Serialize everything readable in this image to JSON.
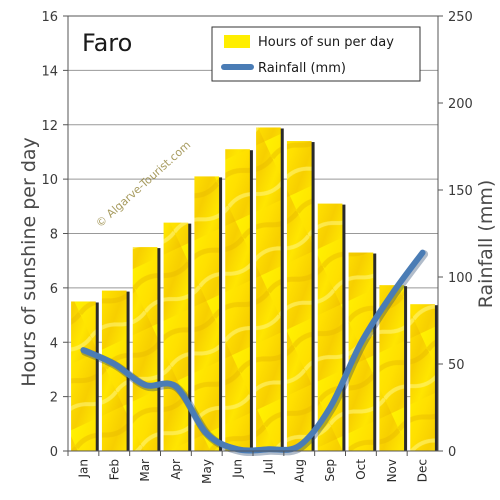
{
  "chart_data": {
    "type": "bar",
    "title": "Faro",
    "watermark": "© Algarve-Tourist.com",
    "categories": [
      "Jan",
      "Feb",
      "Mar",
      "Apr",
      "May",
      "Jun",
      "Jul",
      "Aug",
      "Sep",
      "Oct",
      "Nov",
      "Dec"
    ],
    "series": [
      {
        "name": "Hours of sun per day",
        "type": "bar",
        "axis": "left",
        "color": "#ffee00",
        "values": [
          5.5,
          5.9,
          7.5,
          8.4,
          10.1,
          11.1,
          11.9,
          11.4,
          9.1,
          7.3,
          6.1,
          5.4
        ]
      },
      {
        "name": "Rainfall (mm)",
        "type": "line",
        "axis": "right",
        "color": "#4a7cb5",
        "values": [
          58,
          50,
          38,
          37,
          10,
          1,
          1,
          3,
          25,
          62,
          90,
          114
        ]
      }
    ],
    "ylabel": "Hours of sunshine per day",
    "ylim": [
      0,
      16
    ],
    "yticks": [
      "0",
      "2",
      "4",
      "6",
      "8",
      "10",
      "12",
      "14",
      "16"
    ],
    "y2label": "Rainfall (mm)",
    "y2lim": [
      0,
      250
    ],
    "y2ticks": [
      "0",
      "50",
      "100",
      "150",
      "200",
      "250"
    ],
    "grid": true,
    "legend": "top-right"
  }
}
